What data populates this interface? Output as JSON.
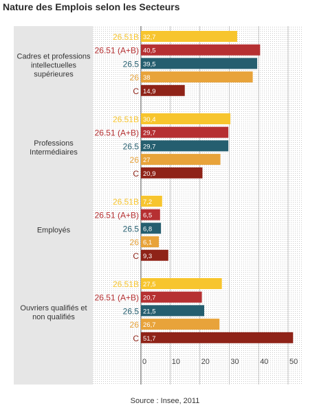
{
  "title": "Nature des Emplois selon les Secteurs",
  "source": "Source : Insee, 2011",
  "chart_data": {
    "type": "bar",
    "orientation": "horizontal",
    "groups": [
      "Cadres et professions intellectuelles supérieures",
      "Professions Intermédiaires",
      "Employés",
      "Ouvriers qualifiés et non qualifiés"
    ],
    "group_label_lines": [
      [
        "Cadres et professions",
        "intellectuelles",
        "supérieures"
      ],
      [
        "Professions",
        "Intermédiaires"
      ],
      [
        "Employés"
      ],
      [
        "Ouvriers qualifiés et",
        "non qualifiés"
      ]
    ],
    "series": [
      {
        "name": "26.51B",
        "color": "#f7c52e",
        "values": [
          32.7,
          30.4,
          7.2,
          27.5
        ],
        "labels": [
          "32,7",
          "30,4",
          "7,2",
          "27,5"
        ]
      },
      {
        "name": "26.51 (A+B)",
        "color": "#b63032",
        "values": [
          40.5,
          29.7,
          6.5,
          20.7
        ],
        "labels": [
          "40,5",
          "29,7",
          "6,5",
          "20,7"
        ]
      },
      {
        "name": "26.5",
        "color": "#255e6f",
        "values": [
          39.5,
          29.7,
          6.8,
          21.5
        ],
        "labels": [
          "39,5",
          "29,7",
          "6,8",
          "21,5"
        ]
      },
      {
        "name": "26",
        "color": "#e8a33a",
        "values": [
          38,
          27,
          6.1,
          26.7
        ],
        "labels": [
          "38",
          "27",
          "6,1",
          "26,7"
        ]
      },
      {
        "name": "C",
        "color": "#8f2318",
        "values": [
          14.9,
          20.9,
          9.3,
          51.7
        ],
        "labels": [
          "14,9",
          "20,9",
          "9,3",
          "51,7"
        ]
      }
    ],
    "x_ticks": [
      "0",
      "10",
      "20",
      "30",
      "40",
      "50"
    ],
    "xlim": [
      0,
      55
    ],
    "grid": true
  }
}
